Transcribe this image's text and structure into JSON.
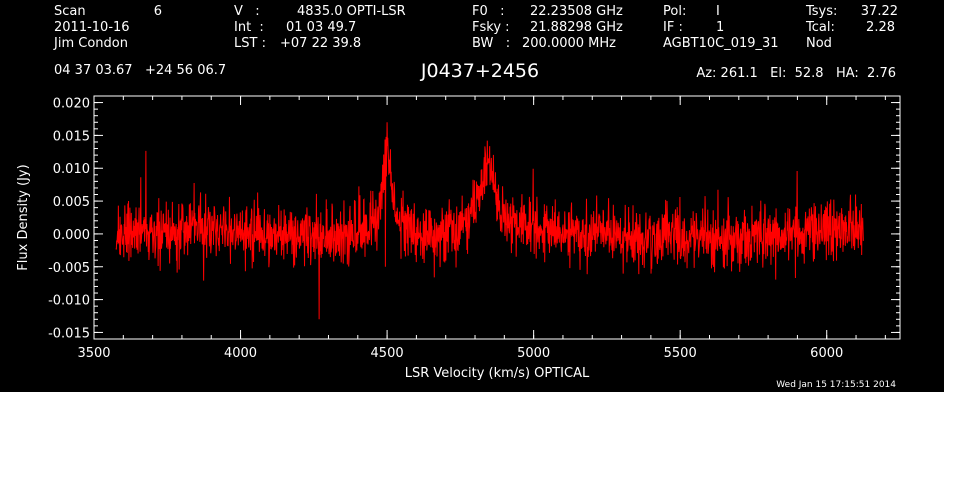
{
  "header": {
    "scan_label": "Scan",
    "scan_value": "6",
    "date": "2011-10-16",
    "observer": "Jim Condon",
    "coords": "04 37 03.67   +24 56 06.7",
    "v_label": "V   :",
    "v_value": "4835.0 OPTI-LSR",
    "int_label": "Int  :",
    "int_value": "01 03 49.7",
    "lst_label": "LST :",
    "lst_value": "+07 22 39.8",
    "f0_label": "F0   :",
    "f0_value": "22.23508 GHz",
    "fsky_label": "Fsky :",
    "fsky_value": "21.88298 GHz",
    "bw_label": "BW   :",
    "bw_value": "200.0000 MHz",
    "pol_label": "Pol:",
    "pol_value": "I",
    "if_label": "IF :",
    "if_value": "1",
    "project": "AGBT10C_019_31",
    "tsys_label": "Tsys:",
    "tsys_value": "37.22",
    "tcal_label": "Tcal:",
    "tcal_value": "2.28",
    "proc": "Nod",
    "source": "J0437+2456",
    "az_el_ha": "Az: 261.1   El:  52.8   HA:  2.76",
    "timestamp": "Wed Jan 15 17:15:51 2014"
  },
  "colors": {
    "background": "#000000",
    "axes": "#ffffff",
    "trace": "#ff0000"
  },
  "chart_data": {
    "type": "line",
    "xlabel": "LSR Velocity (km/s) OPTICAL",
    "ylabel": "Flux Density (Jy)",
    "xlim": [
      3500,
      6250
    ],
    "ylim": [
      -0.016,
      0.021
    ],
    "x_ticks": [
      "3500",
      "4000",
      "4500",
      "5000",
      "5500",
      "6000"
    ],
    "y_ticks": [
      "0.020",
      "0.015",
      "0.010",
      "0.005",
      "0.000",
      "-0.005",
      "-0.010",
      "-0.015"
    ],
    "x_tick_values": [
      3500,
      4000,
      4500,
      5000,
      5500,
      6000
    ],
    "y_tick_values": [
      0.02,
      0.015,
      0.01,
      0.005,
      0.0,
      -0.005,
      -0.01,
      -0.015
    ],
    "x_minor_step": 100,
    "y_minor_step": 0.001,
    "grid": false,
    "legend": "none",
    "x_range": [
      3575,
      6125
    ],
    "noise_rms": 0.0022,
    "features": [
      {
        "velocity": 4500,
        "peak": 0.017
      },
      {
        "velocity": 4845,
        "peak": 0.0115
      }
    ]
  }
}
